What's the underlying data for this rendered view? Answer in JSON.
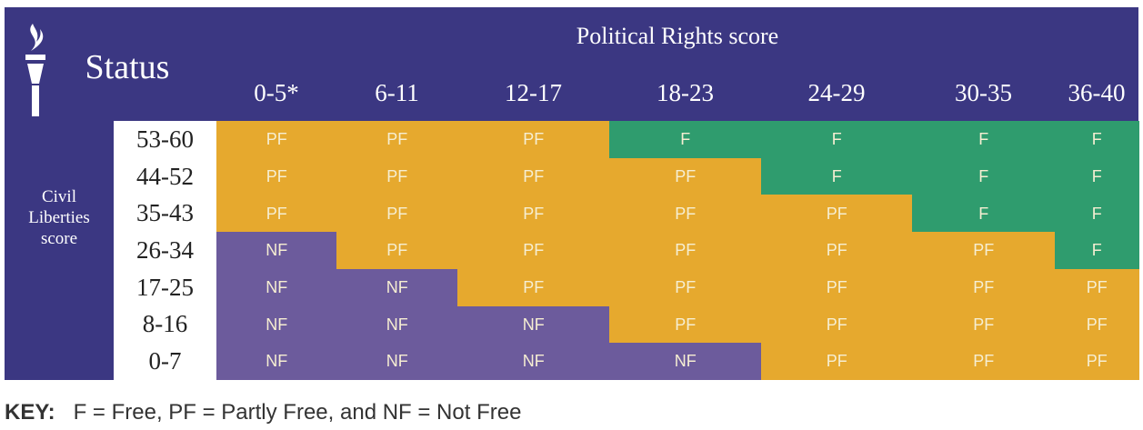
{
  "header": {
    "title": "Status",
    "column_group": "Political Rights score",
    "row_group": [
      "Civil",
      "Liberties",
      "score"
    ]
  },
  "table": {
    "columns": [
      "0-5*",
      "6-11",
      "12-17",
      "18-23",
      "24-29",
      "30-35",
      "36-40"
    ],
    "row_labels": [
      "53-60",
      "44-52",
      "35-43",
      "26-34",
      "17-25",
      "8-16",
      "0-7"
    ],
    "rows": [
      [
        "PF",
        "PF",
        "PF",
        "F",
        "F",
        "F",
        "F"
      ],
      [
        "PF",
        "PF",
        "PF",
        "PF",
        "F",
        "F",
        "F"
      ],
      [
        "PF",
        "PF",
        "PF",
        "PF",
        "PF",
        "F",
        "F"
      ],
      [
        "NF",
        "PF",
        "PF",
        "PF",
        "PF",
        "PF",
        "F"
      ],
      [
        "NF",
        "NF",
        "PF",
        "PF",
        "PF",
        "PF",
        "PF"
      ],
      [
        "NF",
        "NF",
        "NF",
        "PF",
        "PF",
        "PF",
        "PF"
      ],
      [
        "NF",
        "NF",
        "NF",
        "NF",
        "PF",
        "PF",
        "PF"
      ]
    ]
  },
  "key": {
    "label": "KEY:",
    "text": "F = Free, PF = Partly Free, and NF = Not Free"
  }
}
